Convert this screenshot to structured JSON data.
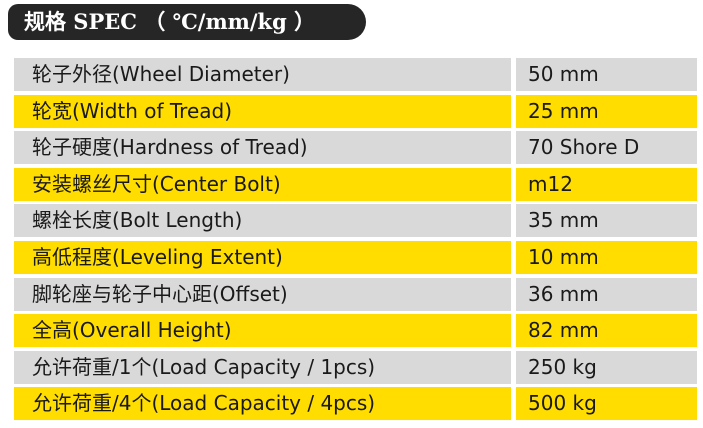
{
  "header": {
    "title": "规格 SPEC （ ℃/mm/kg ）"
  },
  "table": {
    "rows": [
      [
        "轮子外径(Wheel Diameter)",
        "50 mm"
      ],
      [
        "轮宽(Width of Tread)",
        "25 mm"
      ],
      [
        "轮子硬度(Hardness of Tread)",
        "70 Shore D"
      ],
      [
        "安装螺丝尺寸(Center Bolt)",
        "m12"
      ],
      [
        "螺栓长度(Bolt Length)",
        "35 mm"
      ],
      [
        "高低程度(Leveling Extent)",
        "10 mm"
      ],
      [
        "脚轮座与轮子中心距(Offset)",
        "36 mm"
      ],
      [
        "全高(Overall Height)",
        "82 mm"
      ],
      [
        "允许荷重/1个(Load Capacity / 1pcs)",
        "250 kg"
      ],
      [
        "允许荷重/4个(Load Capacity / 4pcs)",
        "500 kg"
      ]
    ]
  }
}
